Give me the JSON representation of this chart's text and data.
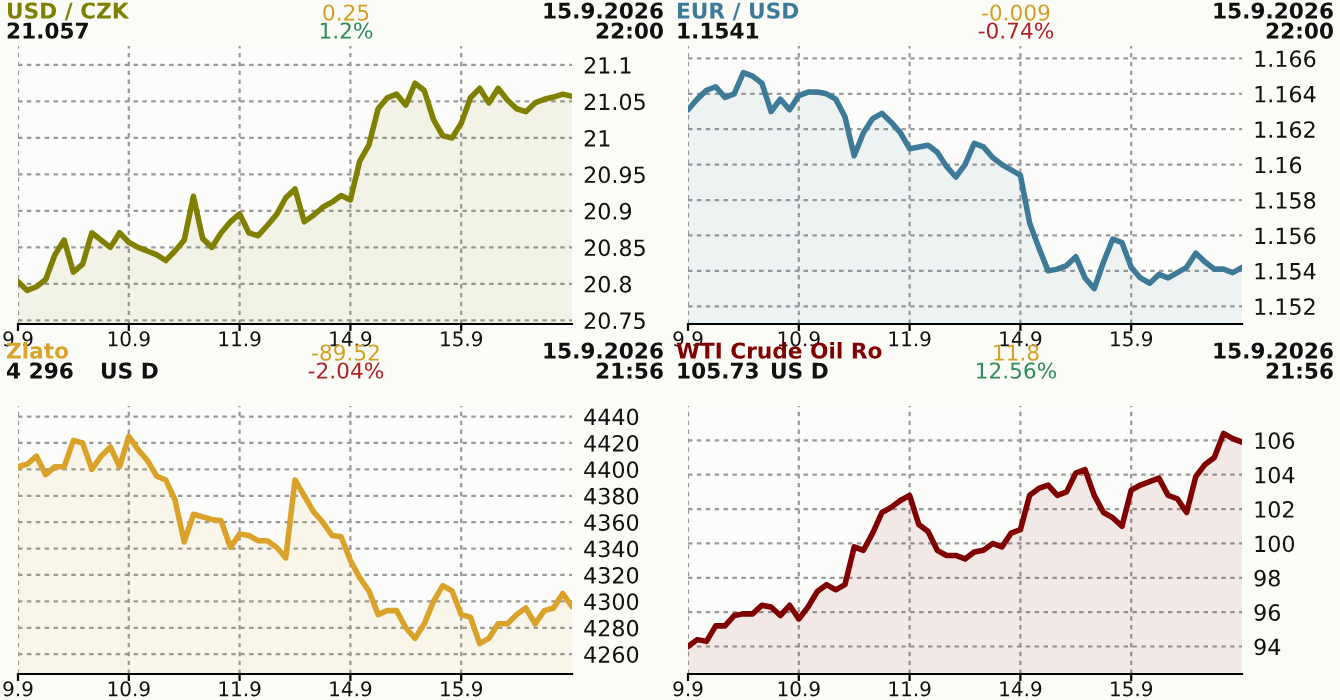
{
  "chart_data": [
    {
      "type": "area",
      "title": "USD / CZK",
      "subtitle": "21.057",
      "annotations": [
        "0.25",
        "1.2%",
        "15.9.2026\n22:00"
      ],
      "grid": true,
      "ylim": [
        20.745,
        21.126
      ],
      "yticks": [
        20.75,
        20.8,
        20.85,
        20.9,
        20.95,
        21,
        21.05,
        21.1
      ],
      "categories": [
        "9.9",
        null,
        null,
        null,
        null,
        null,
        null,
        null,
        null,
        null,
        null,
        null,
        "10.9",
        null,
        null,
        null,
        null,
        null,
        null,
        null,
        null,
        null,
        null,
        null,
        "11.9",
        null,
        null,
        null,
        null,
        null,
        null,
        null,
        null,
        null,
        null,
        null,
        "14.9",
        null,
        null,
        null,
        null,
        null,
        null,
        null,
        null,
        null,
        null,
        null,
        "15.9",
        null,
        null,
        null,
        null,
        null,
        null,
        null,
        null,
        null,
        null,
        null,
        null
      ],
      "series": [
        {
          "color": "#808000",
          "values": [
            20.803,
            20.791,
            20.796,
            20.806,
            20.84,
            20.86,
            20.816,
            20.827,
            20.87,
            20.86,
            20.85,
            20.87,
            20.857,
            20.85,
            20.845,
            20.84,
            20.832,
            20.845,
            20.86,
            20.92,
            20.862,
            20.85,
            20.87,
            20.885,
            20.896,
            20.87,
            20.866,
            20.88,
            20.895,
            20.918,
            20.93,
            20.885,
            20.894,
            20.905,
            20.912,
            20.921,
            20.915,
            20.968,
            20.99,
            21.04,
            21.055,
            21.06,
            21.045,
            21.075,
            21.065,
            21.025,
            21.003,
            21.0,
            21.02,
            21.055,
            21.068,
            21.048,
            21.068,
            21.052,
            21.04,
            21.036,
            21.048,
            21.053,
            21.056,
            21.06,
            21.057
          ]
        }
      ]
    },
    {
      "type": "area",
      "title": "EUR / USD",
      "subtitle": "1.1541",
      "annotations": [
        "-0.009",
        "-0.74%",
        "15.9.2026\n22:00"
      ],
      "grid": true,
      "ylim": [
        1.151,
        1.1667
      ],
      "yticks": [
        1.152,
        1.154,
        1.156,
        1.158,
        1.16,
        1.162,
        1.164,
        1.166
      ],
      "categories": [
        "9.9",
        null,
        null,
        null,
        null,
        null,
        null,
        null,
        null,
        null,
        null,
        null,
        "10.9",
        null,
        null,
        null,
        null,
        null,
        null,
        null,
        null,
        null,
        null,
        null,
        "11.9",
        null,
        null,
        null,
        null,
        null,
        null,
        null,
        null,
        null,
        null,
        null,
        "14.9",
        null,
        null,
        null,
        null,
        null,
        null,
        null,
        null,
        null,
        null,
        null,
        "15.9",
        null,
        null,
        null,
        null,
        null,
        null,
        null,
        null,
        null,
        null,
        null,
        null
      ],
      "series": [
        {
          "color": "#3d7a98",
          "values": [
            1.1631,
            1.1637,
            1.1642,
            1.1644,
            1.1638,
            1.164,
            1.1652,
            1.165,
            1.1646,
            1.163,
            1.1637,
            1.1631,
            1.1639,
            1.1641,
            1.1641,
            1.164,
            1.1637,
            1.1627,
            1.1605,
            1.1618,
            1.1626,
            1.1629,
            1.1624,
            1.1618,
            1.1609,
            1.161,
            1.1611,
            1.1607,
            1.1599,
            1.1593,
            1.16,
            1.1612,
            1.161,
            1.1604,
            1.16,
            1.1597,
            1.1594,
            1.1567,
            1.1553,
            1.154,
            1.1541,
            1.1543,
            1.1548,
            1.1536,
            1.153,
            1.1545,
            1.1558,
            1.1556,
            1.1542,
            1.1536,
            1.1533,
            1.1538,
            1.1536,
            1.1539,
            1.1542,
            1.155,
            1.1545,
            1.1541,
            1.1541,
            1.1539,
            1.1542
          ]
        }
      ]
    },
    {
      "type": "area",
      "title": "Zlato",
      "subtitle": "4 296",
      "annotations": [
        "-89.52",
        "-2.04%",
        "15.9.2026\n21:56",
        "US D"
      ],
      "grid": true,
      "ylim": [
        4245,
        4448
      ],
      "yticks": [
        4260,
        4280,
        4300,
        4320,
        4340,
        4360,
        4380,
        4400,
        4420,
        4440
      ],
      "categories": [
        "9.9",
        null,
        null,
        null,
        null,
        null,
        null,
        null,
        null,
        null,
        null,
        null,
        "10.9",
        null,
        null,
        null,
        null,
        null,
        null,
        null,
        null,
        null,
        null,
        null,
        "11.9",
        null,
        null,
        null,
        null,
        null,
        null,
        null,
        null,
        null,
        null,
        null,
        "14.9",
        null,
        null,
        null,
        null,
        null,
        null,
        null,
        null,
        null,
        null,
        null,
        "15.9",
        null,
        null,
        null,
        null,
        null,
        null,
        null,
        null,
        null,
        null,
        null,
        null
      ],
      "series": [
        {
          "color": "#dba22a",
          "values": [
            4402,
            4404,
            4410,
            4396,
            4402,
            4402,
            4422,
            4420,
            4400,
            4410,
            4417,
            4402,
            4425,
            4415,
            4407,
            4395,
            4392,
            4377,
            4345,
            4366,
            4364,
            4362,
            4361,
            4341,
            4351,
            4350,
            4346,
            4346,
            4341,
            4333,
            4392,
            4380,
            4368,
            4360,
            4350,
            4349,
            4331,
            4318,
            4308,
            4290,
            4293,
            4293,
            4280,
            4272,
            4283,
            4300,
            4312,
            4308,
            4290,
            4288,
            4268,
            4272,
            4283,
            4283,
            4290,
            4295,
            4283,
            4293,
            4295,
            4306,
            4296
          ]
        }
      ]
    },
    {
      "type": "area",
      "title": "WTI Crude Oil Ro",
      "subtitle": "105.73",
      "annotations": [
        "11.8",
        "12.56%",
        "15.9.2026\n21:56",
        "US D"
      ],
      "grid": true,
      "ylim": [
        92.4,
        108
      ],
      "yticks": [
        94,
        96,
        98,
        100,
        102,
        104,
        106
      ],
      "categories": [
        "9.9",
        null,
        null,
        null,
        null,
        null,
        null,
        null,
        null,
        null,
        null,
        null,
        "10.9",
        null,
        null,
        null,
        null,
        null,
        null,
        null,
        null,
        null,
        null,
        null,
        "11.9",
        null,
        null,
        null,
        null,
        null,
        null,
        null,
        null,
        null,
        null,
        null,
        "14.9",
        null,
        null,
        null,
        null,
        null,
        null,
        null,
        null,
        null,
        null,
        null,
        "15.9",
        null,
        null,
        null,
        null,
        null,
        null,
        null,
        null,
        null,
        null,
        null,
        null
      ],
      "series": [
        {
          "color": "#800000",
          "values": [
            94.0,
            94.4,
            94.3,
            95.2,
            95.2,
            95.8,
            95.9,
            95.9,
            96.4,
            96.3,
            95.8,
            96.4,
            95.6,
            96.3,
            97.2,
            97.6,
            97.3,
            97.6,
            99.8,
            99.6,
            100.6,
            101.8,
            102.1,
            102.5,
            102.8,
            101.1,
            100.7,
            99.6,
            99.3,
            99.3,
            99.1,
            99.5,
            99.6,
            100.0,
            99.8,
            100.6,
            100.8,
            102.8,
            103.2,
            103.4,
            102.8,
            103.0,
            104.1,
            104.3,
            102.8,
            101.8,
            101.5,
            101.0,
            103.1,
            103.4,
            103.6,
            103.8,
            102.8,
            102.6,
            101.8,
            103.9,
            104.6,
            105.0,
            106.4,
            106.1,
            105.9
          ]
        }
      ]
    }
  ]
}
